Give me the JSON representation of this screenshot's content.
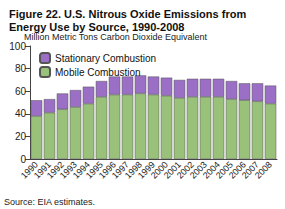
{
  "chart_data": {
    "type": "bar",
    "stacked": true,
    "title": "Figure 22. U.S. Nitrous Oxide Emissions from Energy Use by Source, 1990-2008",
    "ylabel": "Million Metric Tons Carbon Dioxide Equivalent",
    "source": "Source: EIA estimates.",
    "categories": [
      "1990",
      "1991",
      "1992",
      "1993",
      "1994",
      "1995",
      "1996",
      "1997",
      "1998",
      "1999",
      "2000",
      "2001",
      "2002",
      "2003",
      "2004",
      "2005",
      "2006",
      "2007",
      "2008"
    ],
    "series": [
      {
        "name": "Mobile Combustion",
        "color": "#99c17a",
        "values": [
          38,
          41,
          44,
          46,
          49,
          55,
          57,
          57,
          58,
          57,
          56,
          54,
          55,
          55,
          55,
          53,
          52,
          51,
          49
        ]
      },
      {
        "name": "Stationary Combustion",
        "color": "#9b6fc6",
        "values": [
          14,
          12,
          14,
          15,
          15,
          14,
          16,
          16,
          16,
          16,
          16,
          16,
          16,
          16,
          16,
          16,
          15,
          16,
          16
        ]
      }
    ],
    "ylim": [
      0,
      100
    ],
    "yticks": [
      0,
      20,
      40,
      60,
      80,
      100
    ],
    "grid": false,
    "legend": "top-left"
  }
}
